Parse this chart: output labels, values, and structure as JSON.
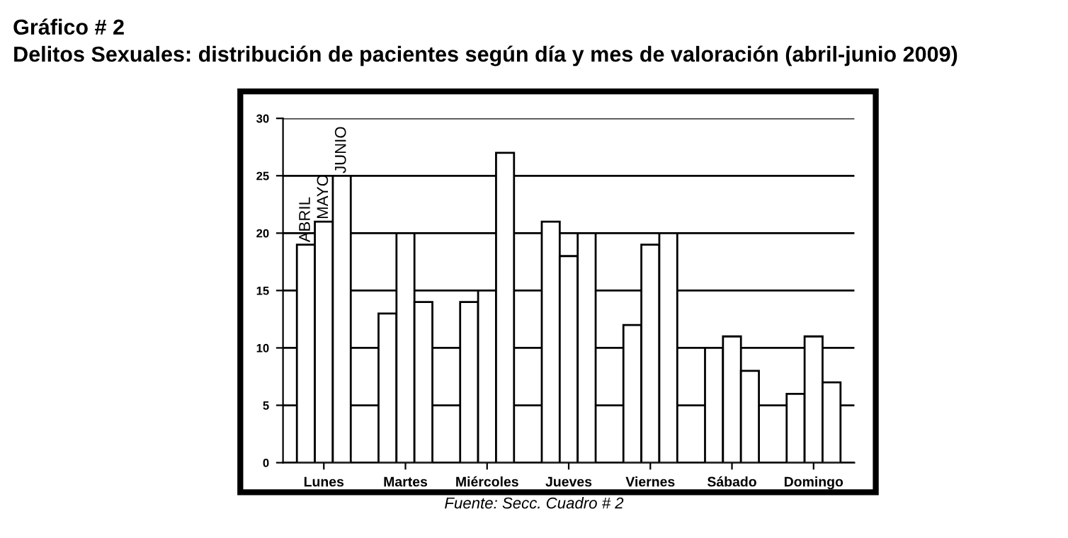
{
  "chart_data": {
    "type": "bar",
    "title": "Gráfico # 2",
    "subtitle": "Delitos Sexuales: distribución de pacientes según día y mes de valoración (abril-junio 2009)",
    "categories": [
      "Lunes",
      "Martes",
      "Miércoles",
      "Jueves",
      "Viernes",
      "Sábado",
      "Domingo"
    ],
    "series": [
      {
        "name": "ABRIL",
        "color": "#ffffff",
        "values": [
          19,
          13,
          14,
          21,
          12,
          10,
          6
        ]
      },
      {
        "name": "MAYO",
        "color": "#ffffff",
        "values": [
          21,
          20,
          15,
          18,
          19,
          11,
          11
        ]
      },
      {
        "name": "JUNIO",
        "color": "#ffffff",
        "values": [
          25,
          14,
          27,
          20,
          20,
          8,
          7
        ]
      }
    ],
    "ylim": [
      0,
      30
    ],
    "yticks": [
      0,
      5,
      10,
      15,
      20,
      25,
      30
    ],
    "grid": "y",
    "legend": false,
    "annotations": [
      "Fuente: Secc. Cuadro # 2"
    ]
  }
}
